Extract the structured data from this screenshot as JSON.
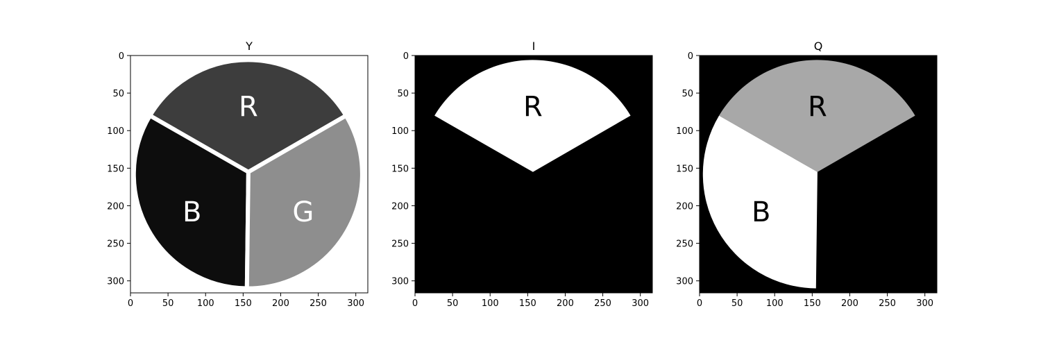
{
  "figure": {
    "panels": [
      {
        "id": "Y",
        "title": "Y",
        "background": "#ffffff",
        "outline": true,
        "segments": [
          {
            "name": "R",
            "label": "R",
            "fill": "#3d3d3d",
            "label_color": "#ffffff"
          },
          {
            "name": "B",
            "label": "B",
            "fill": "#0d0d0d",
            "label_color": "#ffffff"
          },
          {
            "name": "G",
            "label": "G",
            "fill": "#8e8e8e",
            "label_color": "#ffffff"
          }
        ]
      },
      {
        "id": "I",
        "title": "I",
        "background": "#000000",
        "outline": false,
        "segments": [
          {
            "name": "R",
            "label": "R",
            "fill": "#ffffff",
            "label_color": "#000000"
          }
        ]
      },
      {
        "id": "Q",
        "title": "Q",
        "background": "#000000",
        "outline": false,
        "segments": [
          {
            "name": "R",
            "label": "R",
            "fill": "#a8a8a8",
            "label_color": "#000000"
          },
          {
            "name": "B",
            "label": "B",
            "fill": "#ffffff",
            "label_color": "#000000"
          }
        ]
      }
    ],
    "x_ticks": [
      "0",
      "50",
      "100",
      "150",
      "200",
      "250",
      "300"
    ],
    "y_ticks": [
      "0",
      "50",
      "100",
      "150",
      "200",
      "250",
      "300"
    ]
  }
}
